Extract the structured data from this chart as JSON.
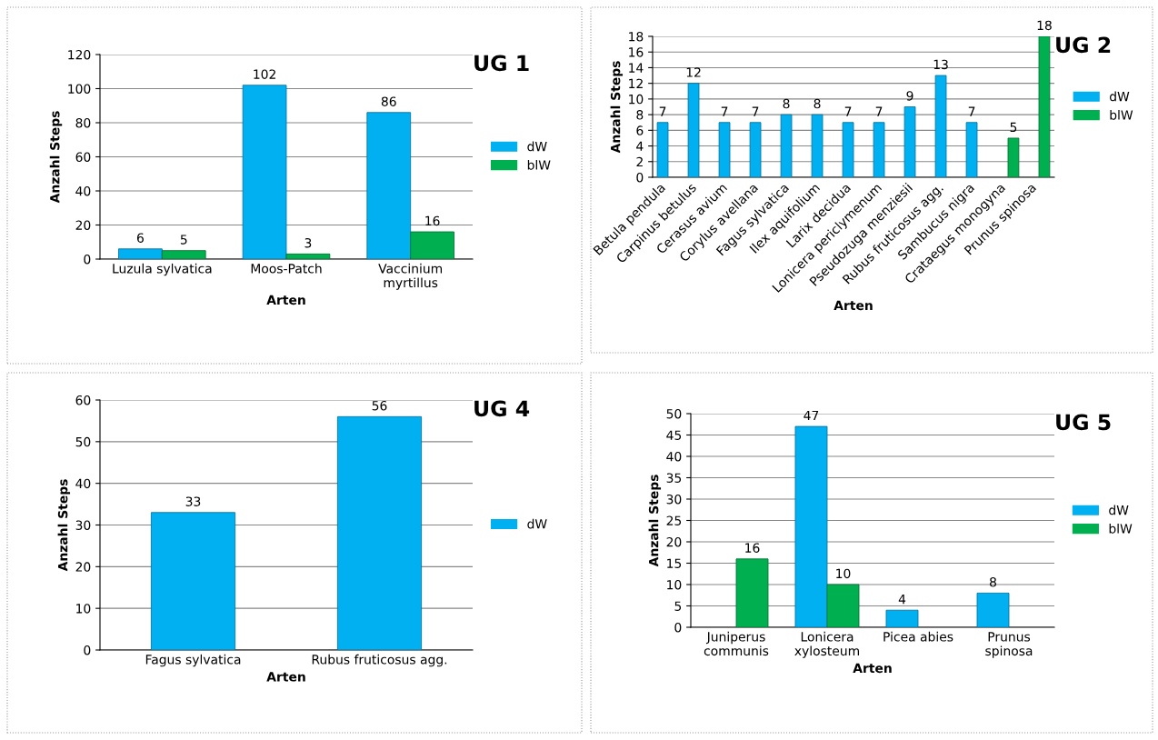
{
  "chart_data": [
    {
      "type": "bar",
      "title": "UG 1",
      "xlabel": "Arten",
      "ylabel": "Anzahl Steps",
      "categories": [
        "Luzula sylvatica",
        "Moos-Patch",
        "Vaccinium\nmyrtillus"
      ],
      "series": [
        {
          "name": "dW",
          "color": "#00b0f0",
          "values": [
            6,
            102,
            86
          ]
        },
        {
          "name": "blW",
          "color": "#00b050",
          "values": [
            5,
            3,
            16
          ]
        }
      ],
      "ylim": [
        0,
        120
      ],
      "yticks": [
        0,
        20,
        40,
        60,
        80,
        100,
        120
      ],
      "grid": "y",
      "legend": "right",
      "data_labels": true
    },
    {
      "type": "bar",
      "title": "UG 2",
      "xlabel": "Arten",
      "ylabel": "Anzahl Steps",
      "categories": [
        "Betula pendula",
        "Carpinus betulus",
        "Cerasus avium",
        "Corylus avellana",
        "Fagus sylvatica",
        "Ilex aquifolium",
        "Larix decidua",
        "Lonicera periclymenum",
        "Pseudozuga menziesii",
        "Rubus fruticosus agg.",
        "Sambucus nigra",
        "Crataegus monogyna",
        "Prunus spinosa"
      ],
      "series": [
        {
          "name": "dW",
          "color": "#00b0f0",
          "values": [
            7,
            12,
            7,
            7,
            8,
            8,
            7,
            7,
            9,
            13,
            7,
            null,
            null
          ]
        },
        {
          "name": "blW",
          "color": "#00b050",
          "values": [
            null,
            null,
            null,
            null,
            null,
            null,
            null,
            null,
            null,
            null,
            null,
            5,
            18
          ]
        }
      ],
      "ylim": [
        0,
        18
      ],
      "yticks": [
        0,
        2,
        4,
        6,
        8,
        10,
        12,
        14,
        16,
        18
      ],
      "grid": "y",
      "legend": "right",
      "data_labels": true
    },
    {
      "type": "bar",
      "title": "UG 4",
      "xlabel": "Arten",
      "ylabel": "Anzahl Steps",
      "categories": [
        "Fagus sylvatica",
        "Rubus fruticosus agg."
      ],
      "series": [
        {
          "name": "dW",
          "color": "#00b0f0",
          "values": [
            33,
            56
          ]
        }
      ],
      "ylim": [
        0,
        60
      ],
      "yticks": [
        0,
        10,
        20,
        30,
        40,
        50,
        60
      ],
      "grid": "y",
      "legend": "right",
      "data_labels": true
    },
    {
      "type": "bar",
      "title": "UG 5",
      "xlabel": "Arten",
      "ylabel": "Anzahl Steps",
      "categories": [
        "Juniperus\ncommunis",
        "Lonicera\nxylosteum",
        "Picea abies",
        "Prunus\nspinosa"
      ],
      "series": [
        {
          "name": "dW",
          "color": "#00b0f0",
          "values": [
            null,
            47,
            4,
            8
          ]
        },
        {
          "name": "blW",
          "color": "#00b050",
          "values": [
            16,
            10,
            null,
            null
          ]
        }
      ],
      "ylim": [
        0,
        50
      ],
      "yticks": [
        0,
        5,
        10,
        15,
        20,
        25,
        30,
        35,
        40,
        45,
        50
      ],
      "grid": "y",
      "legend": "right",
      "data_labels": true
    }
  ]
}
